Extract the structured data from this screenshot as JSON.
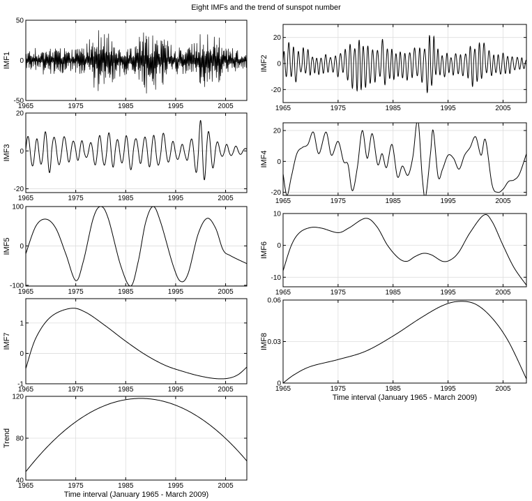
{
  "figure": {
    "title": "Eight IMFs and the trend of sunspot number"
  },
  "chart_data": [
    {
      "id": "imf1",
      "type": "line",
      "title": "",
      "xlabel": "",
      "ylabel": "IMF1",
      "xlim": [
        1965,
        2009.25
      ],
      "ylim": [
        -50,
        50
      ],
      "xticks": [
        1965,
        1975,
        1985,
        1995,
        2005
      ],
      "yticks": [
        -50,
        0,
        50
      ],
      "grid": true,
      "signal": {
        "kind": "noise",
        "t0": 1965,
        "t1": 2009.25,
        "step": 0.0833,
        "envelope": [
          [
            1965,
            12
          ],
          [
            1970,
            18
          ],
          [
            1974,
            15
          ],
          [
            1977,
            18
          ],
          [
            1979,
            40
          ],
          [
            1981,
            35
          ],
          [
            1983,
            28
          ],
          [
            1985,
            20
          ],
          [
            1987,
            18
          ],
          [
            1989,
            45
          ],
          [
            1991,
            38
          ],
          [
            1993,
            25
          ],
          [
            1996,
            15
          ],
          [
            1999,
            25
          ],
          [
            2001,
            38
          ],
          [
            2003,
            30
          ],
          [
            2006,
            15
          ],
          [
            2009.25,
            10
          ]
        ],
        "period_min": 0.17,
        "period_max": 0.42
      }
    },
    {
      "id": "imf2",
      "type": "line",
      "title": "",
      "xlabel": "",
      "ylabel": "IMF2",
      "xlim": [
        1965,
        2009.25
      ],
      "ylim": [
        -30,
        30
      ],
      "xticks": [
        1965,
        1975,
        1985,
        1995,
        2005
      ],
      "yticks": [
        -20,
        0,
        20
      ],
      "grid": true,
      "signal": {
        "kind": "oscillation",
        "t0": 1965,
        "t1": 2009.25,
        "step": 0.02,
        "envelope": [
          [
            1965,
            8
          ],
          [
            1966,
            18
          ],
          [
            1968,
            14
          ],
          [
            1970,
            10
          ],
          [
            1972,
            8
          ],
          [
            1974,
            10
          ],
          [
            1976,
            12
          ],
          [
            1978,
            22
          ],
          [
            1980,
            22
          ],
          [
            1982,
            18
          ],
          [
            1983.5,
            25
          ],
          [
            1985,
            15
          ],
          [
            1987,
            12
          ],
          [
            1989,
            18
          ],
          [
            1991,
            22
          ],
          [
            1992,
            28
          ],
          [
            1993,
            15
          ],
          [
            1995,
            10
          ],
          [
            1997,
            8
          ],
          [
            1999,
            15
          ],
          [
            2000,
            22
          ],
          [
            2002,
            14
          ],
          [
            2004,
            10
          ],
          [
            2006,
            8
          ],
          [
            2009.25,
            5
          ]
        ],
        "period_min": 0.7,
        "period_max": 1.0
      }
    },
    {
      "id": "imf3",
      "type": "line",
      "title": "",
      "xlabel": "",
      "ylabel": "IMF3",
      "xlim": [
        1965,
        2009.25
      ],
      "ylim": [
        -22,
        20
      ],
      "xticks": [
        1965,
        1975,
        1985,
        1995,
        2005
      ],
      "yticks": [
        -20,
        0,
        20
      ],
      "grid": true,
      "signal": {
        "kind": "oscillation",
        "t0": 1965,
        "t1": 2009.25,
        "step": 0.02,
        "envelope": [
          [
            1965,
            9
          ],
          [
            1967,
            10
          ],
          [
            1969,
            12
          ],
          [
            1971,
            12
          ],
          [
            1973,
            8
          ],
          [
            1975,
            5
          ],
          [
            1977,
            7
          ],
          [
            1979,
            10
          ],
          [
            1981,
            12
          ],
          [
            1983,
            10
          ],
          [
            1985,
            13
          ],
          [
            1987,
            10
          ],
          [
            1989,
            12
          ],
          [
            1991,
            15
          ],
          [
            1993,
            8
          ],
          [
            1995,
            5
          ],
          [
            1997,
            4
          ],
          [
            1999,
            14
          ],
          [
            2000.5,
            22
          ],
          [
            2002,
            14
          ],
          [
            2004,
            6
          ],
          [
            2006,
            4
          ],
          [
            2009.25,
            2
          ]
        ],
        "period_min": 1.5,
        "period_max": 2.1
      }
    },
    {
      "id": "imf4",
      "type": "line",
      "title": "",
      "xlabel": "",
      "ylabel": "IMF4",
      "xlim": [
        1965,
        2009.25
      ],
      "ylim": [
        -22,
        25
      ],
      "xticks": [
        1965,
        1975,
        1985,
        1995,
        2005
      ],
      "yticks": [
        -20,
        0,
        20
      ],
      "grid": true,
      "signal": {
        "kind": "spline",
        "t0": 1965,
        "t1": 2009.25,
        "step": 0.05,
        "knots": [
          [
            1965,
            -8
          ],
          [
            1965.7,
            -22
          ],
          [
            1966.5,
            -10
          ],
          [
            1967.5,
            5
          ],
          [
            1968.5,
            9
          ],
          [
            1969.5,
            11
          ],
          [
            1970.5,
            19
          ],
          [
            1971.5,
            5
          ],
          [
            1972.8,
            19
          ],
          [
            1973.8,
            4
          ],
          [
            1975,
            13
          ],
          [
            1976,
            0
          ],
          [
            1976.8,
            -2
          ],
          [
            1977.6,
            -19
          ],
          [
            1978.5,
            -4
          ],
          [
            1979.4,
            20
          ],
          [
            1980.3,
            2
          ],
          [
            1981.2,
            18
          ],
          [
            1982.2,
            -2
          ],
          [
            1983,
            5
          ],
          [
            1983.8,
            -4
          ],
          [
            1984.8,
            11
          ],
          [
            1985.8,
            -10
          ],
          [
            1986.7,
            -3
          ],
          [
            1987.7,
            -9
          ],
          [
            1988.6,
            3
          ],
          [
            1989.5,
            27
          ],
          [
            1990.3,
            -10
          ],
          [
            1990.9,
            -23
          ],
          [
            1991.8,
            5
          ],
          [
            1992.3,
            20
          ],
          [
            1993.2,
            -10
          ],
          [
            1994,
            -5
          ],
          [
            1995,
            4
          ],
          [
            1996,
            2
          ],
          [
            1997,
            -5
          ],
          [
            1998,
            4
          ],
          [
            1999,
            9
          ],
          [
            2000,
            16
          ],
          [
            2001,
            4
          ],
          [
            2001.8,
            14
          ],
          [
            2003,
            -15
          ],
          [
            2004,
            -20
          ],
          [
            2005,
            -18
          ],
          [
            2006,
            -13
          ],
          [
            2007,
            -12
          ],
          [
            2008,
            -8
          ],
          [
            2009.25,
            5
          ]
        ]
      }
    },
    {
      "id": "imf5",
      "type": "line",
      "title": "",
      "xlabel": "",
      "ylabel": "IMF5",
      "xlim": [
        1965,
        2009.25
      ],
      "ylim": [
        -102,
        100
      ],
      "xticks": [
        1965,
        1975,
        1985,
        1995,
        2005
      ],
      "yticks": [
        -100,
        0,
        100
      ],
      "grid": true,
      "signal": {
        "kind": "spline",
        "t0": 1965,
        "t1": 2009.25,
        "step": 0.05,
        "knots": [
          [
            1965,
            -20
          ],
          [
            1967,
            50
          ],
          [
            1969,
            68
          ],
          [
            1971,
            45
          ],
          [
            1973,
            -20
          ],
          [
            1975,
            -88
          ],
          [
            1976.5,
            -40
          ],
          [
            1978.5,
            70
          ],
          [
            1980,
            100
          ],
          [
            1981.5,
            70
          ],
          [
            1984,
            -50
          ],
          [
            1986,
            -102
          ],
          [
            1987.5,
            -40
          ],
          [
            1989,
            60
          ],
          [
            1990.5,
            100
          ],
          [
            1992,
            60
          ],
          [
            1994.5,
            -50
          ],
          [
            1996,
            -90
          ],
          [
            1997.5,
            -70
          ],
          [
            1999.5,
            30
          ],
          [
            2001.3,
            70
          ],
          [
            2003,
            45
          ],
          [
            2004.5,
            -10
          ],
          [
            2006,
            -25
          ],
          [
            2009.25,
            -45
          ]
        ]
      }
    },
    {
      "id": "imf6",
      "type": "line",
      "title": "",
      "xlabel": "",
      "ylabel": "IMF6",
      "xlim": [
        1965,
        2009.25
      ],
      "ylim": [
        -13,
        10
      ],
      "xticks": [
        1965,
        1975,
        1985,
        1995,
        2005
      ],
      "yticks": [
        -10,
        0,
        10
      ],
      "grid": true,
      "signal": {
        "kind": "spline",
        "t0": 1965,
        "t1": 2009.25,
        "step": 0.05,
        "knots": [
          [
            1965,
            -8
          ],
          [
            1966.5,
            0
          ],
          [
            1968,
            4
          ],
          [
            1970,
            5.6
          ],
          [
            1972,
            5.4
          ],
          [
            1975,
            4
          ],
          [
            1977,
            5.5
          ],
          [
            1980,
            8.5
          ],
          [
            1982,
            6
          ],
          [
            1984,
            0
          ],
          [
            1986,
            -4
          ],
          [
            1987.5,
            -5
          ],
          [
            1989,
            -3.5
          ],
          [
            1990.5,
            -2.5
          ],
          [
            1992,
            -3
          ],
          [
            1994,
            -5
          ],
          [
            1995.5,
            -4.5
          ],
          [
            1997,
            -2
          ],
          [
            1999,
            4
          ],
          [
            2001.5,
            9.5
          ],
          [
            2003,
            7.5
          ],
          [
            2005,
            0
          ],
          [
            2007,
            -7
          ],
          [
            2009.25,
            -12.5
          ]
        ]
      }
    },
    {
      "id": "imf7",
      "type": "line",
      "title": "",
      "xlabel": "",
      "ylabel": "IMF7",
      "xlim": [
        1965,
        2009.25
      ],
      "ylim": [
        -1,
        1.8
      ],
      "xticks": [
        1965,
        1975,
        1985,
        1995,
        2005
      ],
      "yticks": [
        -1,
        0,
        1
      ],
      "grid": true,
      "signal": {
        "kind": "spline",
        "t0": 1965,
        "t1": 2009.25,
        "step": 0.1,
        "knots": [
          [
            1965,
            -0.5
          ],
          [
            1967,
            0.5
          ],
          [
            1970,
            1.2
          ],
          [
            1974,
            1.48
          ],
          [
            1977,
            1.35
          ],
          [
            1981,
            0.9
          ],
          [
            1985,
            0.4
          ],
          [
            1989,
            -0.05
          ],
          [
            1993,
            -0.4
          ],
          [
            1997,
            -0.62
          ],
          [
            2000,
            -0.75
          ],
          [
            2003,
            -0.83
          ],
          [
            2005.5,
            -0.82
          ],
          [
            2007.5,
            -0.7
          ],
          [
            2009.25,
            -0.45
          ]
        ]
      }
    },
    {
      "id": "imf8",
      "type": "line",
      "title": "",
      "xlabel": "Time interval (January 1965 - March 2009)",
      "ylabel": "IMF8",
      "xlim": [
        1965,
        2009.25
      ],
      "ylim": [
        0,
        0.06
      ],
      "xticks": [
        1965,
        1975,
        1985,
        1995,
        2005
      ],
      "yticks": [
        0,
        0.03,
        0.06
      ],
      "grid": true,
      "signal": {
        "kind": "spline",
        "t0": 1965,
        "t1": 2009.25,
        "step": 0.1,
        "knots": [
          [
            1965,
            0
          ],
          [
            1967,
            0.006
          ],
          [
            1970,
            0.012
          ],
          [
            1975,
            0.017
          ],
          [
            1980,
            0.023
          ],
          [
            1985,
            0.034
          ],
          [
            1990,
            0.047
          ],
          [
            1994,
            0.056
          ],
          [
            1997,
            0.059
          ],
          [
            2000,
            0.057
          ],
          [
            2003,
            0.047
          ],
          [
            2006,
            0.03
          ],
          [
            2009.25,
            0.003
          ]
        ]
      }
    },
    {
      "id": "trend",
      "type": "line",
      "title": "",
      "xlabel": "Time interval (January 1965 - March 2009)",
      "ylabel": "Trend",
      "xlim": [
        1965,
        2009.25
      ],
      "ylim": [
        40,
        120
      ],
      "xticks": [
        1965,
        1975,
        1985,
        1995,
        2005
      ],
      "yticks": [
        40,
        80,
        120
      ],
      "grid": true,
      "signal": {
        "kind": "quadratic",
        "t0": 1965,
        "t1": 2009.25,
        "step": 0.25,
        "peak_x": 1988,
        "peak_y": 118,
        "start_y": 48
      }
    }
  ]
}
